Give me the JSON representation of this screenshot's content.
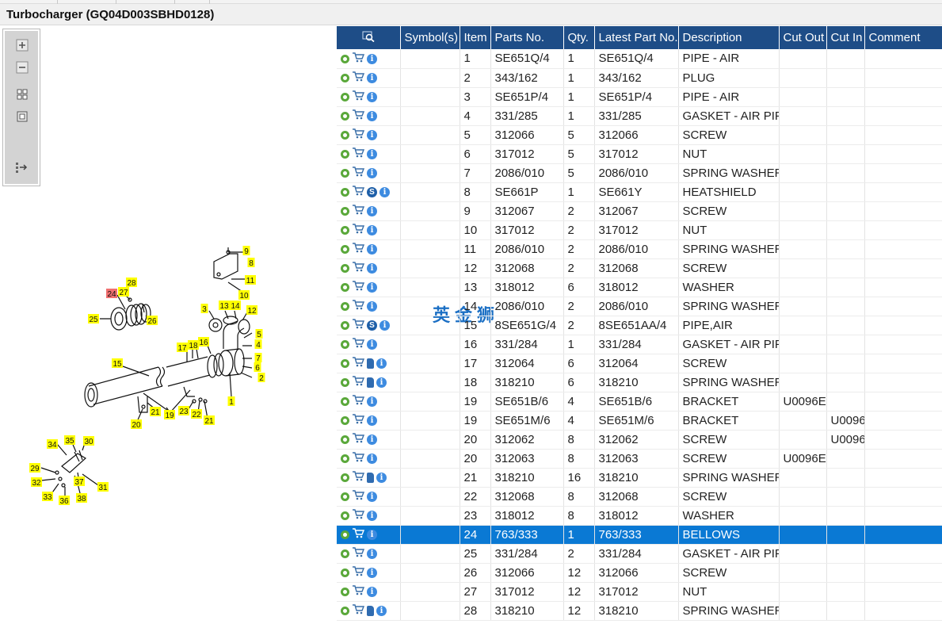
{
  "window": {
    "title": "Turbocharger (GQ04D003SBHD0128)"
  },
  "toolbar": {
    "buttons": [
      {
        "name": "zoom-in",
        "icon": "plus-icon"
      },
      {
        "name": "zoom-out",
        "icon": "minus-icon"
      },
      {
        "name": "fit-all",
        "icon": "grid-icon"
      },
      {
        "name": "actual-size",
        "icon": "square-icon"
      },
      {
        "name": "export",
        "icon": "export-icon"
      }
    ]
  },
  "diagram": {
    "highlight_label": "24",
    "callouts": [
      "1",
      "2",
      "3",
      "4",
      "5",
      "6",
      "7",
      "8",
      "9",
      "10",
      "11",
      "12",
      "13",
      "14",
      "15",
      "16",
      "17",
      "18",
      "19",
      "20",
      "21",
      "21",
      "22",
      "23",
      "24",
      "25",
      "26",
      "27",
      "28",
      "29",
      "30",
      "31",
      "32",
      "33",
      "34",
      "35",
      "36",
      "37",
      "38"
    ]
  },
  "table": {
    "columns": [
      "",
      "Symbol(s)",
      "Item",
      "Parts No.",
      "Qty.",
      "Latest Part No.",
      "Description",
      "Cut Out",
      "Cut In",
      "Comment"
    ],
    "selected_item": "24",
    "rows": [
      {
        "icons": [
          "gear",
          "cart",
          "info"
        ],
        "symbols": "",
        "item": "1",
        "part_no": "SE651Q/4",
        "qty": "1",
        "latest": "SE651Q/4",
        "desc": "PIPE - AIR",
        "cut_out": "",
        "cut_in": "",
        "comment": ""
      },
      {
        "icons": [
          "gear",
          "cart",
          "info"
        ],
        "symbols": "",
        "item": "2",
        "part_no": "343/162",
        "qty": "1",
        "latest": "343/162",
        "desc": "PLUG",
        "cut_out": "",
        "cut_in": "",
        "comment": ""
      },
      {
        "icons": [
          "gear",
          "cart",
          "info"
        ],
        "symbols": "",
        "item": "3",
        "part_no": "SE651P/4",
        "qty": "1",
        "latest": "SE651P/4",
        "desc": "PIPE - AIR",
        "cut_out": "",
        "cut_in": "",
        "comment": ""
      },
      {
        "icons": [
          "gear",
          "cart",
          "info"
        ],
        "symbols": "",
        "item": "4",
        "part_no": "331/285",
        "qty": "1",
        "latest": "331/285",
        "desc": "GASKET - AIR PIPE",
        "cut_out": "",
        "cut_in": "",
        "comment": ""
      },
      {
        "icons": [
          "gear",
          "cart",
          "info"
        ],
        "symbols": "",
        "item": "5",
        "part_no": "312066",
        "qty": "5",
        "latest": "312066",
        "desc": "SCREW",
        "cut_out": "",
        "cut_in": "",
        "comment": ""
      },
      {
        "icons": [
          "gear",
          "cart",
          "info"
        ],
        "symbols": "",
        "item": "6",
        "part_no": "317012",
        "qty": "5",
        "latest": "317012",
        "desc": "NUT",
        "cut_out": "",
        "cut_in": "",
        "comment": ""
      },
      {
        "icons": [
          "gear",
          "cart",
          "info"
        ],
        "symbols": "",
        "item": "7",
        "part_no": "2086/010",
        "qty": "5",
        "latest": "2086/010",
        "desc": "SPRING WASHER",
        "cut_out": "",
        "cut_in": "",
        "comment": ""
      },
      {
        "icons": [
          "gear",
          "cart",
          "s",
          "info"
        ],
        "symbols": "",
        "item": "8",
        "part_no": "SE661P",
        "qty": "1",
        "latest": "SE661Y",
        "desc": "HEATSHIELD",
        "cut_out": "",
        "cut_in": "",
        "comment": ""
      },
      {
        "icons": [
          "gear",
          "cart",
          "info"
        ],
        "symbols": "",
        "item": "9",
        "part_no": "312067",
        "qty": "2",
        "latest": "312067",
        "desc": "SCREW",
        "cut_out": "",
        "cut_in": "",
        "comment": ""
      },
      {
        "icons": [
          "gear",
          "cart",
          "info"
        ],
        "symbols": "",
        "item": "10",
        "part_no": "317012",
        "qty": "2",
        "latest": "317012",
        "desc": "NUT",
        "cut_out": "",
        "cut_in": "",
        "comment": ""
      },
      {
        "icons": [
          "gear",
          "cart",
          "info"
        ],
        "symbols": "",
        "item": "11",
        "part_no": "2086/010",
        "qty": "2",
        "latest": "2086/010",
        "desc": "SPRING WASHER",
        "cut_out": "",
        "cut_in": "",
        "comment": ""
      },
      {
        "icons": [
          "gear",
          "cart",
          "info"
        ],
        "symbols": "",
        "item": "12",
        "part_no": "312068",
        "qty": "2",
        "latest": "312068",
        "desc": "SCREW",
        "cut_out": "",
        "cut_in": "",
        "comment": ""
      },
      {
        "icons": [
          "gear",
          "cart",
          "info"
        ],
        "symbols": "",
        "item": "13",
        "part_no": "318012",
        "qty": "6",
        "latest": "318012",
        "desc": "WASHER",
        "cut_out": "",
        "cut_in": "",
        "comment": ""
      },
      {
        "icons": [
          "gear",
          "cart",
          "info"
        ],
        "symbols": "",
        "item": "14",
        "part_no": "2086/010",
        "qty": "2",
        "latest": "2086/010",
        "desc": "SPRING WASHER",
        "cut_out": "",
        "cut_in": "",
        "comment": ""
      },
      {
        "icons": [
          "gear",
          "cart",
          "s",
          "info"
        ],
        "symbols": "",
        "item": "15",
        "part_no": "8SE651G/4",
        "qty": "2",
        "latest": "8SE651AA/4",
        "desc": "PIPE,AIR",
        "cut_out": "",
        "cut_in": "",
        "comment": ""
      },
      {
        "icons": [
          "gear",
          "cart",
          "info"
        ],
        "symbols": "",
        "item": "16",
        "part_no": "331/284",
        "qty": "1",
        "latest": "331/284",
        "desc": "GASKET - AIR PIPE",
        "cut_out": "",
        "cut_in": "",
        "comment": ""
      },
      {
        "icons": [
          "gear",
          "cart",
          "doc",
          "info"
        ],
        "symbols": "",
        "item": "17",
        "part_no": "312064",
        "qty": "6",
        "latest": "312064",
        "desc": "SCREW",
        "cut_out": "",
        "cut_in": "",
        "comment": ""
      },
      {
        "icons": [
          "gear",
          "cart",
          "doc",
          "info"
        ],
        "symbols": "",
        "item": "18",
        "part_no": "318210",
        "qty": "6",
        "latest": "318210",
        "desc": "SPRING WASHER",
        "cut_out": "",
        "cut_in": "",
        "comment": ""
      },
      {
        "icons": [
          "gear",
          "cart",
          "info"
        ],
        "symbols": "",
        "item": "19",
        "part_no": "SE651B/6",
        "qty": "4",
        "latest": "SE651B/6",
        "desc": "BRACKET",
        "cut_out": "U0096E",
        "cut_in": "",
        "comment": ""
      },
      {
        "icons": [
          "gear",
          "cart",
          "info"
        ],
        "symbols": "",
        "item": "19",
        "part_no": "SE651M/6",
        "qty": "4",
        "latest": "SE651M/6",
        "desc": "BRACKET",
        "cut_out": "",
        "cut_in": "U0096",
        "comment": ""
      },
      {
        "icons": [
          "gear",
          "cart",
          "info"
        ],
        "symbols": "",
        "item": "20",
        "part_no": "312062",
        "qty": "8",
        "latest": "312062",
        "desc": "SCREW",
        "cut_out": "",
        "cut_in": "U0096",
        "comment": ""
      },
      {
        "icons": [
          "gear",
          "cart",
          "info"
        ],
        "symbols": "",
        "item": "20",
        "part_no": "312063",
        "qty": "8",
        "latest": "312063",
        "desc": "SCREW",
        "cut_out": "U0096E",
        "cut_in": "",
        "comment": ""
      },
      {
        "icons": [
          "gear",
          "cart",
          "doc",
          "info"
        ],
        "symbols": "",
        "item": "21",
        "part_no": "318210",
        "qty": "16",
        "latest": "318210",
        "desc": "SPRING WASHER",
        "cut_out": "",
        "cut_in": "",
        "comment": ""
      },
      {
        "icons": [
          "gear",
          "cart",
          "info"
        ],
        "symbols": "",
        "item": "22",
        "part_no": "312068",
        "qty": "8",
        "latest": "312068",
        "desc": "SCREW",
        "cut_out": "",
        "cut_in": "",
        "comment": ""
      },
      {
        "icons": [
          "gear",
          "cart",
          "info"
        ],
        "symbols": "",
        "item": "23",
        "part_no": "318012",
        "qty": "8",
        "latest": "318012",
        "desc": "WASHER",
        "cut_out": "",
        "cut_in": "",
        "comment": ""
      },
      {
        "icons": [
          "gear",
          "cart",
          "info"
        ],
        "symbols": "",
        "item": "24",
        "part_no": "763/333",
        "qty": "1",
        "latest": "763/333",
        "desc": "BELLOWS",
        "cut_out": "",
        "cut_in": "",
        "comment": ""
      },
      {
        "icons": [
          "gear",
          "cart",
          "info"
        ],
        "symbols": "",
        "item": "25",
        "part_no": "331/284",
        "qty": "2",
        "latest": "331/284",
        "desc": "GASKET - AIR PIPE",
        "cut_out": "",
        "cut_in": "",
        "comment": ""
      },
      {
        "icons": [
          "gear",
          "cart",
          "info"
        ],
        "symbols": "",
        "item": "26",
        "part_no": "312066",
        "qty": "12",
        "latest": "312066",
        "desc": "SCREW",
        "cut_out": "",
        "cut_in": "",
        "comment": ""
      },
      {
        "icons": [
          "gear",
          "cart",
          "info"
        ],
        "symbols": "",
        "item": "27",
        "part_no": "317012",
        "qty": "12",
        "latest": "317012",
        "desc": "NUT",
        "cut_out": "",
        "cut_in": "",
        "comment": ""
      },
      {
        "icons": [
          "gear",
          "cart",
          "doc",
          "info"
        ],
        "symbols": "",
        "item": "28",
        "part_no": "318210",
        "qty": "12",
        "latest": "318210",
        "desc": "SPRING WASHER",
        "cut_out": "",
        "cut_in": "",
        "comment": ""
      }
    ]
  },
  "watermark": "英金狮",
  "colors": {
    "header_bg": "#1e4d87",
    "selected_row": "#0a79d4",
    "callout_bg": "#ffff00",
    "callout_highlight": "#f07070"
  }
}
